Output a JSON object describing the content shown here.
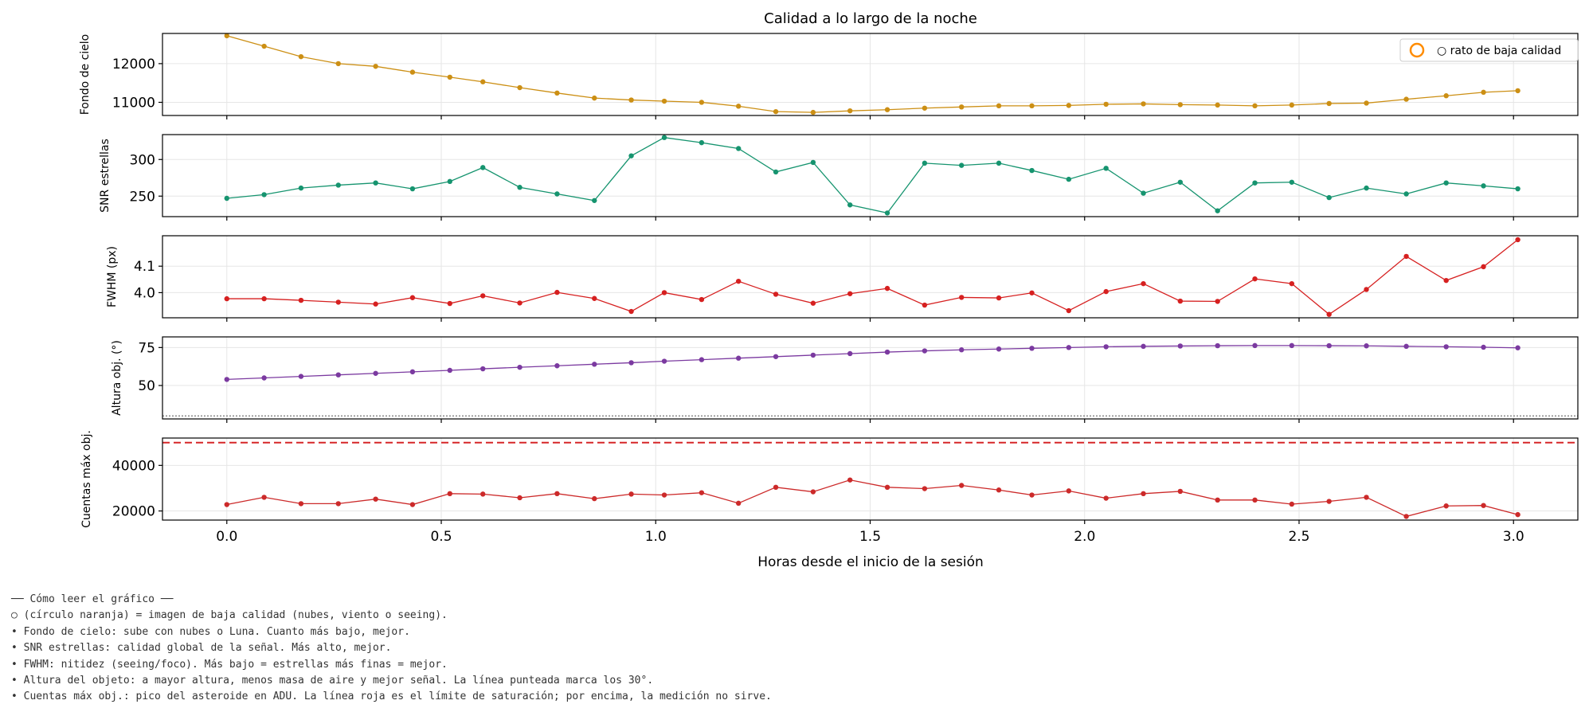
{
  "chart_data": {
    "type": "line",
    "title": "Calidad a lo largo de la noche",
    "xlabel": "Horas desde el inicio de la sesión",
    "xlim": [
      -0.15,
      3.15
    ],
    "xticks": [
      0.0,
      0.5,
      1.0,
      1.5,
      2.0,
      2.5,
      3.0
    ],
    "xtick_labels": [
      "0.0",
      "0.5",
      "1.0",
      "1.5",
      "2.0",
      "2.5",
      "3.0"
    ],
    "x": [
      0.0,
      0.087,
      0.173,
      0.26,
      0.347,
      0.433,
      0.52,
      0.597,
      0.683,
      0.77,
      0.857,
      0.943,
      1.02,
      1.107,
      1.193,
      1.28,
      1.367,
      1.453,
      1.54,
      1.627,
      1.713,
      1.8,
      1.877,
      1.963,
      2.05,
      2.137,
      2.223,
      2.31,
      2.397,
      2.483,
      2.57,
      2.657,
      2.75,
      2.843,
      2.93,
      3.01
    ],
    "grid": true,
    "legend": {
      "label": "○ rato de baja calidad",
      "placement": "top-right",
      "marker_color": "#ff8c00"
    },
    "panels": [
      {
        "ylabel": "Fondo de cielo",
        "color": "#cc8f14",
        "ylim": [
          10660,
          12780
        ],
        "yticks": [
          11000,
          12000
        ],
        "ytick_labels": [
          "11000",
          "12000"
        ],
        "values": [
          12720,
          12450,
          12180,
          12000,
          11930,
          11780,
          11650,
          11530,
          11380,
          11240,
          11110,
          11060,
          11030,
          11000,
          10900,
          10760,
          10740,
          10780,
          10810,
          10850,
          10880,
          10910,
          10910,
          10920,
          10950,
          10960,
          10940,
          10930,
          10910,
          10930,
          10970,
          10980,
          11080,
          11170,
          11260,
          11300
        ]
      },
      {
        "ylabel": "SNR estrellas",
        "color": "#16946f",
        "ylim": [
          222,
          334
        ],
        "yticks": [
          250,
          300
        ],
        "ytick_labels": [
          "250",
          "300"
        ],
        "values": [
          247,
          252,
          261,
          265,
          268,
          260,
          270,
          289,
          262,
          253,
          244,
          305,
          330,
          323,
          315,
          283,
          296,
          238,
          227,
          295,
          292,
          295,
          285,
          273,
          288,
          254,
          269,
          230,
          268,
          269,
          248,
          261,
          253,
          268,
          264,
          260
        ]
      },
      {
        "ylabel": "FWHM (px)",
        "color": "#d62020",
        "ylim": [
          3.905,
          4.215
        ],
        "yticks": [
          4.0,
          4.1
        ],
        "ytick_labels": [
          "4.0",
          "4.1"
        ],
        "values": [
          3.977,
          3.977,
          3.971,
          3.964,
          3.957,
          3.981,
          3.959,
          3.988,
          3.961,
          4.001,
          3.978,
          3.929,
          4.0,
          3.974,
          4.043,
          3.994,
          3.96,
          3.996,
          4.016,
          3.953,
          3.982,
          3.98,
          3.999,
          3.932,
          4.004,
          4.034,
          3.968,
          3.967,
          4.052,
          4.034,
          3.918,
          4.012,
          4.137,
          4.046,
          4.098,
          4.2
        ]
      },
      {
        "ylabel": "Altura obj. (°)",
        "color": "#7b3aa0",
        "ylim": [
          28,
          82
        ],
        "yticks": [
          50,
          75
        ],
        "ytick_labels": [
          "50",
          "75"
        ],
        "ref_line": {
          "y": 30,
          "style": "dotted",
          "color": "#666666"
        },
        "values": [
          54,
          55,
          56,
          57,
          58,
          59,
          60,
          61,
          62,
          63,
          64,
          65,
          66,
          67,
          68,
          69,
          70,
          71,
          72,
          72.8,
          73.5,
          74,
          74.5,
          75,
          75.5,
          75.8,
          76,
          76.2,
          76.3,
          76.3,
          76.2,
          76.1,
          75.8,
          75.5,
          75.2,
          74.8
        ]
      },
      {
        "ylabel": "Cuentas máx obj.",
        "color": "#cc2a2a",
        "ylim": [
          16000,
          52000
        ],
        "yticks": [
          20000,
          40000
        ],
        "ytick_labels": [
          "20000",
          "40000"
        ],
        "ref_line": {
          "y": 50000,
          "style": "dashed",
          "color": "#d62728"
        },
        "values": [
          22800,
          26000,
          23200,
          23200,
          25200,
          22800,
          27600,
          27400,
          25800,
          27600,
          25400,
          27400,
          27000,
          28000,
          23400,
          30400,
          28400,
          33600,
          30400,
          29800,
          31200,
          29200,
          27000,
          28800,
          25600,
          27600,
          28600,
          24800,
          24800,
          23000,
          24200,
          26000,
          17600,
          22200,
          22400,
          18400
        ]
      }
    ]
  },
  "notes": [
    "── Cómo leer el gráfico ──",
    "○ (círculo naranja) = imagen de baja calidad (nubes, viento o seeing).",
    "• Fondo de cielo: sube con nubes o Luna. Cuanto más bajo, mejor.",
    "• SNR estrellas: calidad global de la señal. Más alto, mejor.",
    "• FWHM: nitidez (seeing/foco). Más bajo = estrellas más finas = mejor.",
    "• Altura del objeto: a mayor altura, menos masa de aire y mejor señal. La línea punteada marca los 30°.",
    "• Cuentas máx obj.: pico del asteroide en ADU. La línea roja es el límite de saturación; por encima, la medición no sirve."
  ]
}
